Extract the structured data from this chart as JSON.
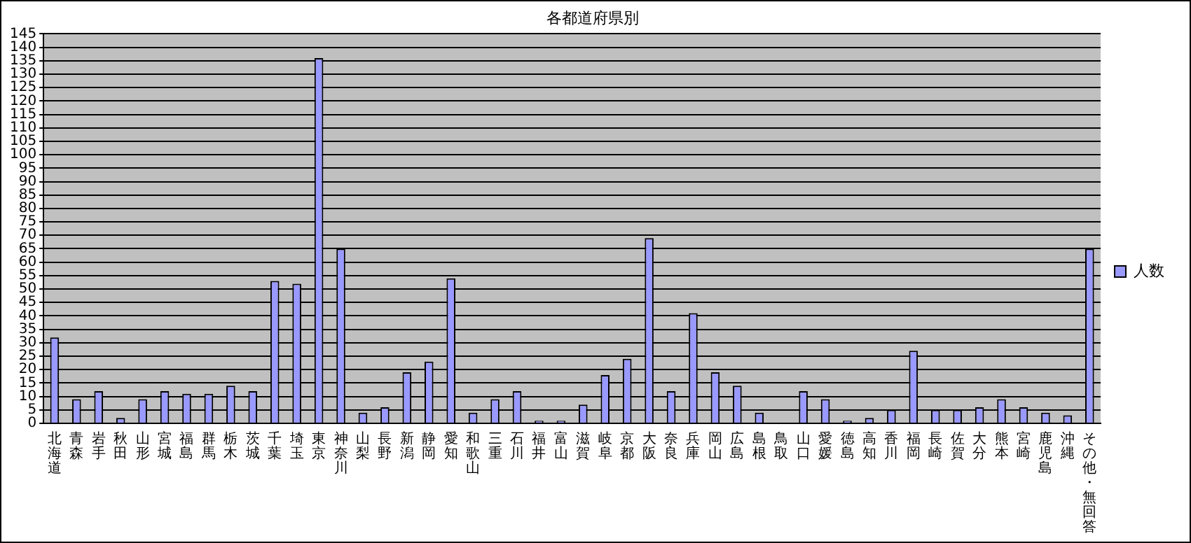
{
  "chart_data": {
    "type": "bar",
    "title": "各都道府県別",
    "categories": [
      "北海道",
      "青森",
      "岩手",
      "秋田",
      "山形",
      "宮城",
      "福島",
      "群馬",
      "栃木",
      "茨城",
      "千葉",
      "埼玉",
      "東京",
      "神奈川",
      "山梨",
      "長野",
      "新潟",
      "静岡",
      "愛知",
      "和歌山",
      "三重",
      "石川",
      "福井",
      "富山",
      "滋賀",
      "岐阜",
      "京都",
      "大阪",
      "奈良",
      "兵庫",
      "岡山",
      "広島",
      "島根",
      "鳥取",
      "山口",
      "愛媛",
      "徳島",
      "高知",
      "香川",
      "福岡",
      "長崎",
      "佐賀",
      "大分",
      "熊本",
      "宮崎",
      "鹿児島",
      "沖縄",
      "その他・無回答"
    ],
    "series": [
      {
        "name": "人数",
        "color": "#9999ff",
        "values": [
          32,
          9,
          12,
          2,
          9,
          12,
          11,
          11,
          14,
          12,
          53,
          52,
          136,
          65,
          4,
          6,
          19,
          23,
          54,
          4,
          9,
          12,
          1,
          1,
          7,
          18,
          24,
          69,
          12,
          41,
          19,
          14,
          4,
          0,
          12,
          9,
          1,
          2,
          5,
          27,
          5,
          5,
          6,
          9,
          6,
          4,
          3,
          65
        ]
      }
    ],
    "ylim": [
      0,
      145
    ],
    "yticks": [
      0,
      5,
      10,
      15,
      20,
      25,
      30,
      35,
      40,
      45,
      50,
      55,
      60,
      65,
      70,
      75,
      80,
      85,
      90,
      95,
      100,
      105,
      110,
      115,
      120,
      125,
      130,
      135,
      140,
      145
    ],
    "grid": "y",
    "legend": "right"
  }
}
